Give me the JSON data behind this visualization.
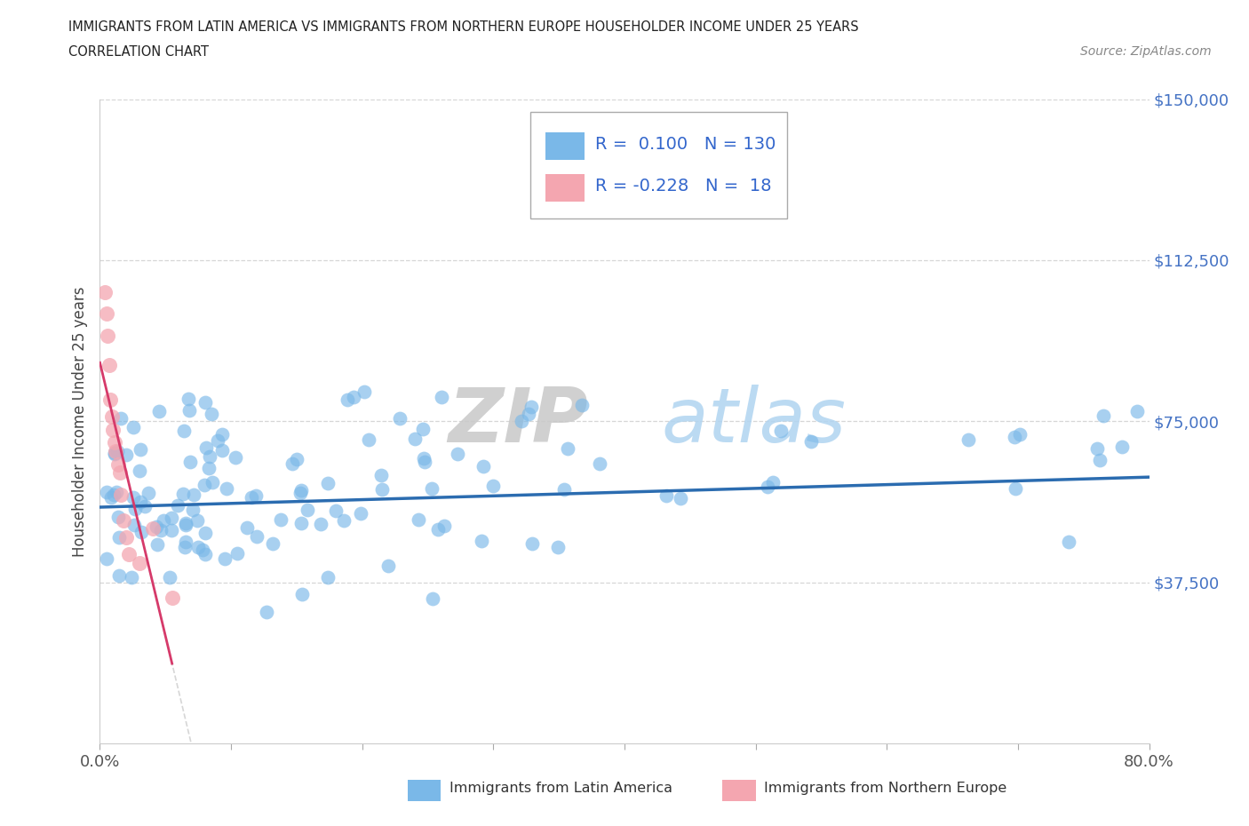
{
  "title_line1": "IMMIGRANTS FROM LATIN AMERICA VS IMMIGRANTS FROM NORTHERN EUROPE HOUSEHOLDER INCOME UNDER 25 YEARS",
  "title_line2": "CORRELATION CHART",
  "source_text": "Source: ZipAtlas.com",
  "ylabel": "Householder Income Under 25 years",
  "xmin": 0.0,
  "xmax": 0.8,
  "ymin": 0,
  "ymax": 150000,
  "yticks": [
    37500,
    75000,
    112500,
    150000
  ],
  "ytick_labels": [
    "$37,500",
    "$75,000",
    "$112,500",
    "$150,000"
  ],
  "xticks": [
    0.0,
    0.1,
    0.2,
    0.3,
    0.4,
    0.5,
    0.6,
    0.7,
    0.8
  ],
  "legend_R1": "0.100",
  "legend_N1": "130",
  "legend_R2": "-0.228",
  "legend_N2": "18",
  "color_latin": "#7ab8e8",
  "color_northern": "#f4a6b0",
  "trendline_color_latin": "#2b6cb0",
  "trendline_color_northern": "#d63a6a",
  "watermark_zip": "ZIP",
  "watermark_atlas": "atlas",
  "background_color": "#ffffff",
  "northern_x": [
    0.004,
    0.005,
    0.006,
    0.007,
    0.008,
    0.009,
    0.01,
    0.011,
    0.012,
    0.014,
    0.015,
    0.016,
    0.018,
    0.02,
    0.022,
    0.03,
    0.04,
    0.055
  ],
  "northern_y": [
    105000,
    100000,
    95000,
    88000,
    80000,
    76000,
    73000,
    70000,
    68000,
    65000,
    63000,
    58000,
    52000,
    48000,
    44000,
    42000,
    50000,
    34000
  ]
}
